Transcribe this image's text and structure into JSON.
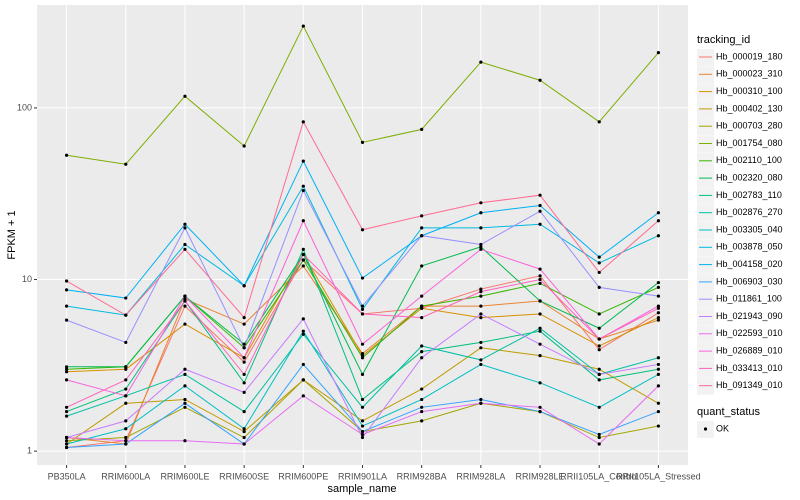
{
  "chart_data": {
    "type": "line",
    "x_label": "sample_name",
    "y_label": "FPKM + 1",
    "categories": [
      "PB350LA",
      "RRIM600LA",
      "RRIM600LE",
      "RRIM600SE",
      "RRIM600PE",
      "RRIM901LA",
      "RRIM928BA",
      "RRIM928LA",
      "RRIM928LE",
      "RRII105LA_Control",
      "RRII105LA_Stressed"
    ],
    "log_scale": true,
    "grid": true,
    "ylim": [
      0.83,
      398
    ],
    "yticks": [
      1,
      10,
      100
    ],
    "legend_title": "tracking_id",
    "legend": "right",
    "point_legend_title": "quant_status",
    "point_legend_label": "OK",
    "point_color": "#000000",
    "series": [
      {
        "name": "Hb_000019_180",
        "color": "#F8766D",
        "values": [
          1.05,
          1.15,
          7,
          3.3,
          13,
          6.3,
          6.8,
          8.8,
          10.5,
          3.9,
          6.4
        ]
      },
      {
        "name": "Hb_000023_310",
        "color": "#EA8331",
        "values": [
          1.2,
          1.1,
          7.7,
          5.5,
          12,
          3.7,
          7,
          7,
          7.5,
          4.5,
          5.8
        ]
      },
      {
        "name": "Hb_000310_100",
        "color": "#D89000",
        "values": [
          2.9,
          3,
          5.5,
          3.5,
          14,
          3.6,
          6.8,
          6,
          6.3,
          4.1,
          6
        ]
      },
      {
        "name": "Hb_000402_130",
        "color": "#C09B00",
        "values": [
          1.1,
          1.9,
          2,
          1.3,
          2.6,
          1.5,
          2.3,
          4,
          3.6,
          3,
          1.9
        ]
      },
      {
        "name": "Hb_000703_280",
        "color": "#A3A500",
        "values": [
          1.15,
          1.2,
          1.8,
          1.2,
          2.6,
          1.3,
          1.5,
          1.9,
          1.7,
          1.2,
          1.4
        ]
      },
      {
        "name": "Hb_001754_080",
        "color": "#7CAE00",
        "values": [
          53,
          47,
          117,
          60,
          300,
          63,
          75,
          185,
          145,
          83,
          210
        ]
      },
      {
        "name": "Hb_002110_100",
        "color": "#39B600",
        "values": [
          3,
          3.1,
          8,
          4,
          13,
          3.5,
          7,
          8,
          9.5,
          6.3,
          9
        ]
      },
      {
        "name": "Hb_002320_080",
        "color": "#00BB4E",
        "values": [
          3.1,
          3.1,
          8,
          4.2,
          14,
          2.8,
          12,
          15.5,
          7.5,
          5.2,
          9.6
        ]
      },
      {
        "name": "Hb_002783_110",
        "color": "#00BF7D",
        "values": [
          1.7,
          2.3,
          7.5,
          2.5,
          15,
          2,
          3.8,
          4.3,
          5,
          2.6,
          3
        ]
      },
      {
        "name": "Hb_002876_270",
        "color": "#00C1A3",
        "values": [
          1.6,
          2.1,
          2.8,
          1.7,
          4.8,
          1.8,
          4.1,
          3.4,
          5.2,
          2.8,
          3.5
        ]
      },
      {
        "name": "Hb_003305_040",
        "color": "#00BFC4",
        "values": [
          1.1,
          1.35,
          2.4,
          1.35,
          5,
          1.4,
          2,
          3.2,
          2.5,
          1.8,
          2.8
        ]
      },
      {
        "name": "Hb_003878_050",
        "color": "#00BAE0",
        "values": [
          7,
          6.2,
          16,
          9.2,
          35,
          6.7,
          20,
          20,
          21,
          12.5,
          18
        ]
      },
      {
        "name": "Hb_004158_020",
        "color": "#00B0F6",
        "values": [
          8.7,
          7.8,
          21,
          9.2,
          49,
          10.2,
          18,
          24.5,
          27,
          13.5,
          24.5
        ]
      },
      {
        "name": "Hb_006903_030",
        "color": "#35A2FF",
        "values": [
          1.05,
          1.1,
          1.9,
          1.1,
          3.2,
          1.3,
          1.8,
          2,
          1.7,
          1.25,
          1.7
        ]
      },
      {
        "name": "Hb_011861_100",
        "color": "#9590FF",
        "values": [
          5.8,
          4.3,
          20,
          4,
          33,
          7,
          18,
          16,
          25,
          9,
          8
        ]
      },
      {
        "name": "Hb_021943_090",
        "color": "#C77CFF",
        "values": [
          1.2,
          1.5,
          3,
          2.2,
          5.9,
          1.2,
          3.5,
          6.3,
          4.2,
          2.8,
          3.2
        ]
      },
      {
        "name": "Hb_022593_010",
        "color": "#E76BF3",
        "values": [
          1.2,
          1.15,
          1.15,
          1.1,
          2.1,
          1.25,
          1.7,
          1.9,
          1.8,
          1.1,
          2.4
        ]
      },
      {
        "name": "Hb_026889_010",
        "color": "#FA62DB",
        "values": [
          2.6,
          2.1,
          8,
          3.5,
          22,
          4.2,
          8,
          15,
          11.5,
          4.5,
          7
        ]
      },
      {
        "name": "Hb_033413_010",
        "color": "#FF62BC",
        "values": [
          1.8,
          2.6,
          7.5,
          2.8,
          14,
          6.3,
          6,
          8.5,
          10,
          4.5,
          6.8
        ]
      },
      {
        "name": "Hb_091349_010",
        "color": "#FF6C91",
        "values": [
          9.8,
          6.2,
          15,
          6,
          83,
          19.5,
          23.5,
          28,
          31,
          11,
          22
        ]
      }
    ]
  }
}
